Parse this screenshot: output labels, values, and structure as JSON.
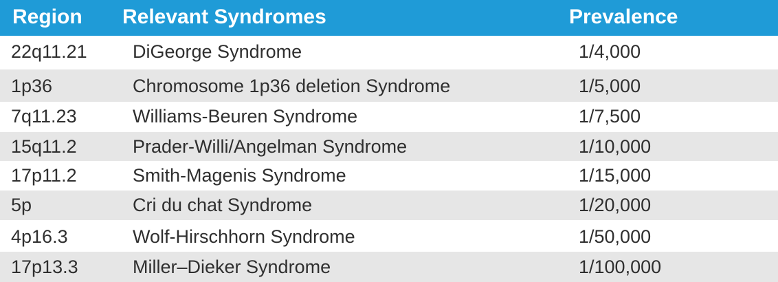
{
  "table": {
    "headers": {
      "region": "Region",
      "syndromes": "Relevant Syndromes",
      "prevalence": "Prevalence"
    },
    "rows": [
      {
        "region": "22q11.21",
        "syndrome": "DiGeorge Syndrome",
        "prevalence": "1/4,000"
      },
      {
        "region": "1p36",
        "syndrome": "Chromosome 1p36 deletion Syndrome",
        "prevalence": "1/5,000"
      },
      {
        "region": "7q11.23",
        "syndrome": "Williams-Beuren Syndrome",
        "prevalence": "1/7,500"
      },
      {
        "region": "15q11.2",
        "syndrome": "Prader-Willi/Angelman Syndrome",
        "prevalence": "1/10,000"
      },
      {
        "region": "17p11.2",
        "syndrome": "Smith-Magenis Syndrome",
        "prevalence": "1/15,000"
      },
      {
        "region": "5p",
        "syndrome": "Cri du chat Syndrome",
        "prevalence": "1/20,000"
      },
      {
        "region": "4p16.3",
        "syndrome": "Wolf-Hirschhorn Syndrome",
        "prevalence": "1/50,000"
      },
      {
        "region": "17p13.3",
        "syndrome": "Miller–Dieker Syndrome",
        "prevalence": "1/100,000"
      }
    ]
  },
  "colors": {
    "header_bg": "#1f9bd7",
    "header_text": "#ffffff",
    "row_alt_bg": "#e6e6e6",
    "row_bg": "#ffffff",
    "body_text": "#2f2f2f"
  }
}
